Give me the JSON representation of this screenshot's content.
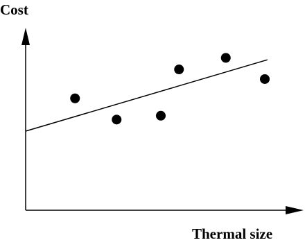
{
  "chart_data": {
    "type": "scatter",
    "title": "",
    "xlabel": "Thermal size",
    "ylabel": "Cost",
    "ticks": "none",
    "grid": false,
    "legend": "none",
    "points": [
      {
        "x": 0.19,
        "y": 0.58
      },
      {
        "x": 0.35,
        "y": 0.47
      },
      {
        "x": 0.52,
        "y": 0.49
      },
      {
        "x": 0.59,
        "y": 0.73
      },
      {
        "x": 0.77,
        "y": 0.79
      },
      {
        "x": 0.92,
        "y": 0.68
      }
    ],
    "trend_line": {
      "x": [
        0.0,
        0.93
      ],
      "y": [
        0.41,
        0.78
      ]
    },
    "colors": {
      "ink": "#000000",
      "background": "#ffffff"
    }
  }
}
